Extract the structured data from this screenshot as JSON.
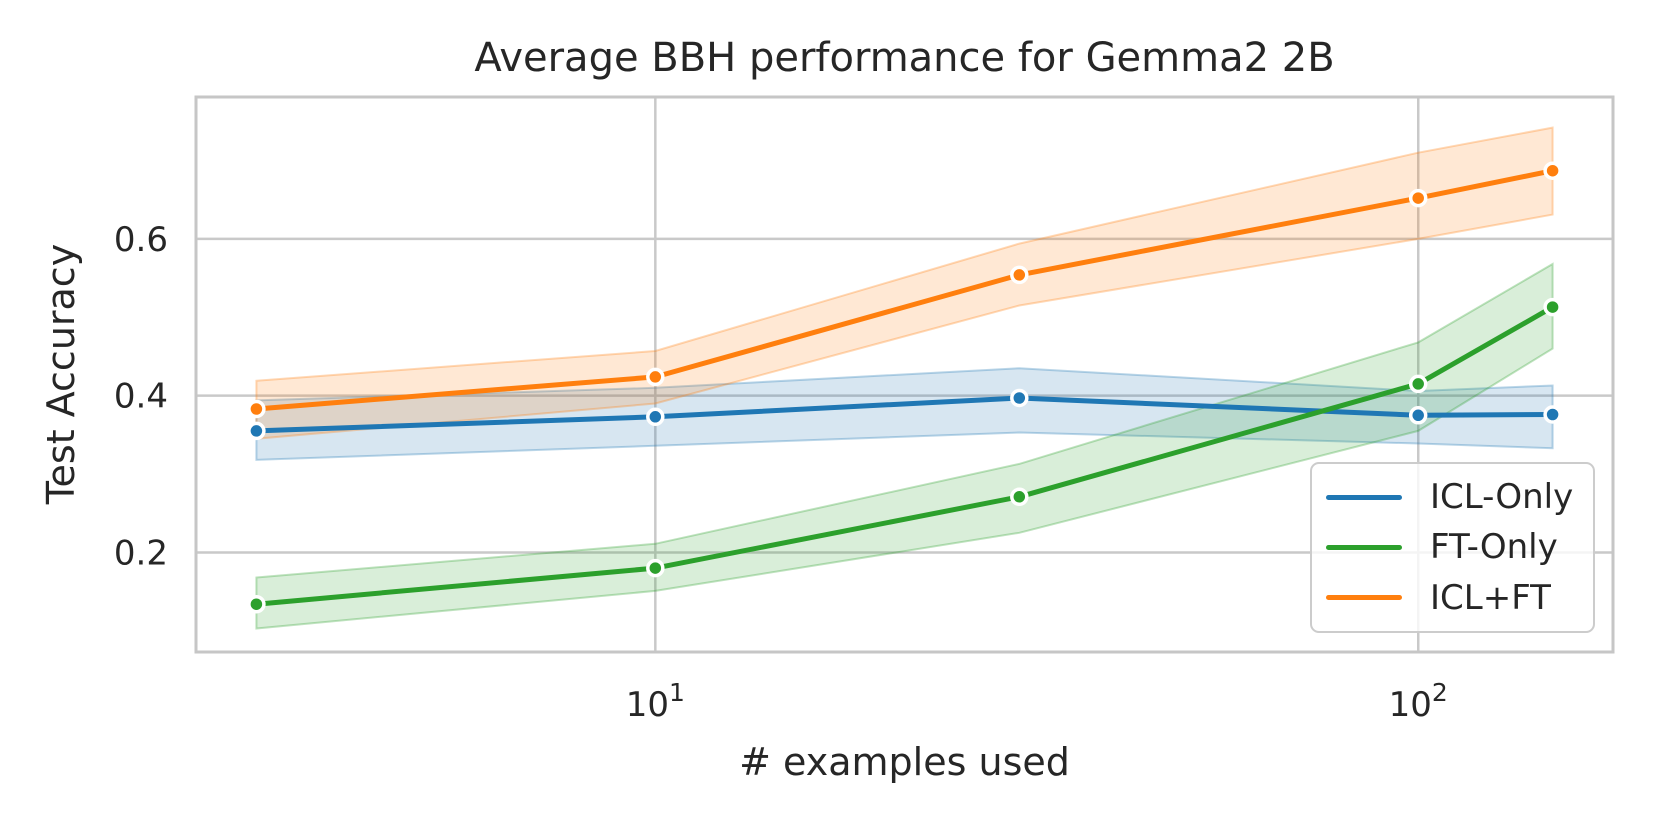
{
  "style": {
    "text_color": "#262626",
    "grid_color": "#c9c9c9",
    "spine_color": "#c6c6c6",
    "background": "#ffffff",
    "band_fill_opacity": 0.18,
    "band_edge_opacity": 0.3
  },
  "chart_data": {
    "type": "line",
    "title": "Average BBH performance for Gemma2 2B",
    "xlabel": "# examples used",
    "ylabel": "Test Accuracy",
    "x_scale": "log10",
    "xlim": [
      2.5,
      180
    ],
    "ylim": [
      0.073,
      0.781
    ],
    "grid": true,
    "legend_position": "lower right",
    "x": [
      3,
      10,
      30,
      100,
      150
    ],
    "x_ticks": [
      {
        "value": 10,
        "label_base": "10",
        "label_exp": "1"
      },
      {
        "value": 100,
        "label_base": "10",
        "label_exp": "2"
      }
    ],
    "y_ticks": [
      {
        "value": 0.2,
        "label": "0.2"
      },
      {
        "value": 0.4,
        "label": "0.4"
      },
      {
        "value": 0.6,
        "label": "0.6"
      }
    ],
    "series": [
      {
        "name": "ICL-Only",
        "color": "#1f77b4",
        "values": [
          0.355,
          0.373,
          0.397,
          0.375,
          0.376
        ],
        "band_low": [
          0.318,
          0.336,
          0.353,
          0.339,
          0.333
        ],
        "band_high": [
          0.394,
          0.41,
          0.435,
          0.406,
          0.413
        ]
      },
      {
        "name": "FT-Only",
        "color": "#2ca02c",
        "values": [
          0.134,
          0.18,
          0.271,
          0.415,
          0.513
        ],
        "band_low": [
          0.103,
          0.151,
          0.225,
          0.355,
          0.46
        ],
        "band_high": [
          0.168,
          0.211,
          0.313,
          0.468,
          0.568
        ]
      },
      {
        "name": "ICL+FT",
        "color": "#ff7f0e",
        "values": [
          0.383,
          0.424,
          0.554,
          0.652,
          0.687
        ],
        "band_low": [
          0.345,
          0.39,
          0.515,
          0.6,
          0.631
        ],
        "band_high": [
          0.419,
          0.457,
          0.594,
          0.71,
          0.742
        ]
      }
    ]
  }
}
